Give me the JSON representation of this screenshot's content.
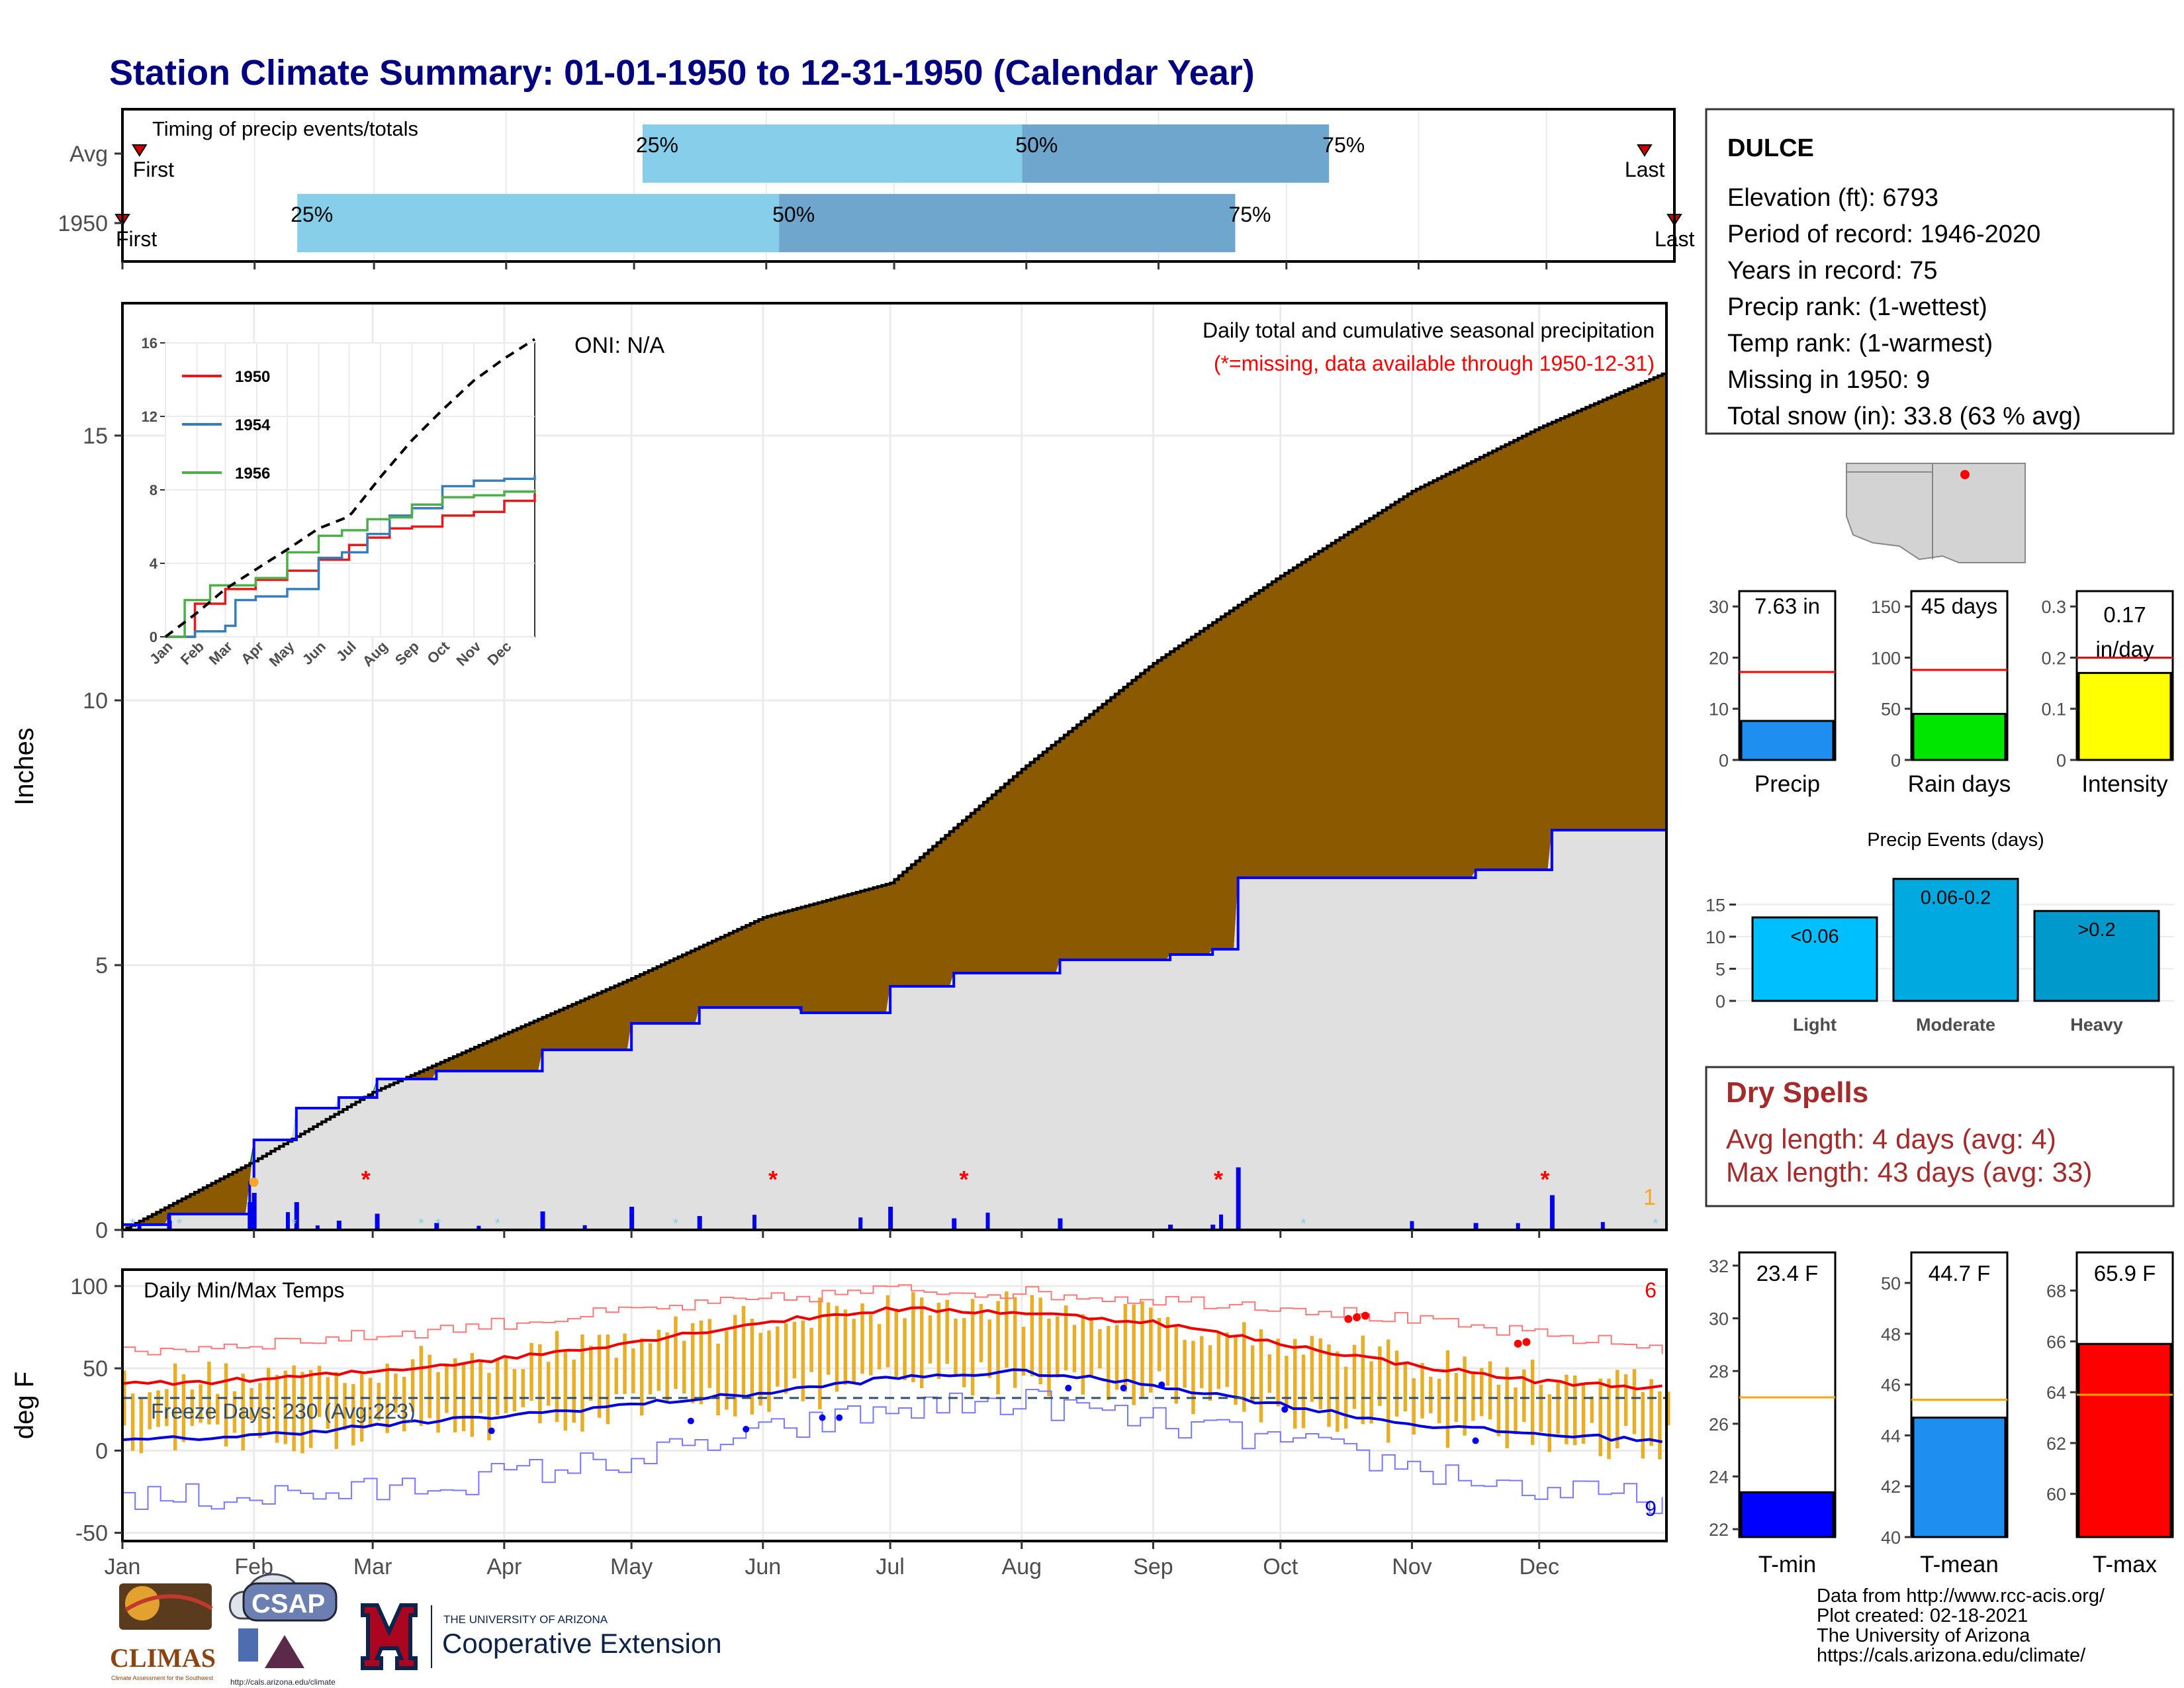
{
  "title": "Station Climate Summary: 01-01-1950 to 12-31-1950 (Calendar Year)",
  "timing": {
    "label": "Timing of precip events/totals",
    "rows": [
      "Avg",
      "1950"
    ],
    "first_label": "First",
    "last_label": "Last",
    "quartile_labels": [
      "25%",
      "50%",
      "75%"
    ],
    "avg_quartile_doy": [
      123,
      212,
      284
    ],
    "y1950_quartile_doy": [
      42,
      155,
      262
    ],
    "avg_first_doy": 5,
    "avg_last_doy": 358,
    "y1950_first_doy": 1,
    "y1950_last_doy": 365
  },
  "months": [
    "Jan",
    "Feb",
    "Mar",
    "Apr",
    "May",
    "Jun",
    "Jul",
    "Aug",
    "Sep",
    "Oct",
    "Nov",
    "Dec"
  ],
  "main_panel": {
    "ylabel": "Inches",
    "yticks": [
      0,
      5,
      10,
      15
    ],
    "ylim": [
      0,
      17.5
    ],
    "annotation_title": "Daily total and cumulative seasonal precipitation",
    "annotation_missing": "(*=missing, data available through 1950-12-31)",
    "oni": "ONI: N/A",
    "corner_count": "1"
  },
  "chart_data": [
    {
      "type": "area",
      "name": "cumulative-precip",
      "x_unit": "day of year",
      "series": [
        {
          "name": "Avg cumulative",
          "x": [
            1,
            32,
            60,
            91,
            121,
            152,
            182,
            213,
            244,
            274,
            305,
            335,
            365
          ],
          "values": [
            0,
            1.3,
            2.6,
            3.7,
            4.75,
            5.9,
            6.55,
            8.7,
            10.7,
            12.35,
            13.95,
            15.15,
            16.2
          ]
        },
        {
          "name": "1950 cumulative",
          "x": [
            1,
            12,
            20,
            31,
            32,
            42,
            52,
            61,
            75,
            100,
            121,
            137,
            152,
            161,
            182,
            192,
            197,
            222,
            248,
            258,
            264,
            320,
            338,
            365
          ],
          "values": [
            0.1,
            0.3,
            0.3,
            0.9,
            1.7,
            2.3,
            2.5,
            2.85,
            3.0,
            3.4,
            3.9,
            4.2,
            4.2,
            4.1,
            4.6,
            4.6,
            4.85,
            5.1,
            5.2,
            5.3,
            6.65,
            6.8,
            7.55,
            7.55
          ]
        }
      ],
      "missing_doy": [
        59,
        155,
        200,
        260,
        337
      ],
      "ylim": [
        0,
        17.5
      ]
    },
    {
      "type": "line",
      "name": "inset-cumulative",
      "x_unit": "day of year",
      "yticks": [
        0,
        4,
        8,
        12,
        16
      ],
      "ylim": [
        0,
        16
      ],
      "series": [
        {
          "name": "1950",
          "color": "#e41a1c",
          "x": [
            1,
            30,
            60,
            90,
            121,
            152,
            182,
            200,
            222,
            244,
            274,
            305,
            335,
            365
          ],
          "values": [
            0,
            1.8,
            2.6,
            3.1,
            3.6,
            4.2,
            5.0,
            5.4,
            5.9,
            6.0,
            6.6,
            6.8,
            7.4,
            7.8
          ]
        },
        {
          "name": "1954",
          "color": "#377eb8",
          "x": [
            1,
            30,
            60,
            70,
            90,
            121,
            152,
            175,
            200,
            222,
            244,
            274,
            305,
            335,
            365
          ],
          "values": [
            0,
            0.3,
            0.6,
            2.0,
            2.2,
            2.6,
            4.3,
            4.6,
            5.6,
            6.6,
            7.0,
            8.2,
            8.5,
            8.6,
            8.8
          ]
        },
        {
          "name": "1956",
          "color": "#4daf4a",
          "x": [
            1,
            20,
            45,
            90,
            121,
            152,
            175,
            200,
            222,
            244,
            274,
            305,
            335,
            365
          ],
          "values": [
            0,
            2.0,
            2.8,
            3.2,
            4.6,
            5.5,
            5.8,
            6.4,
            6.5,
            7.2,
            7.6,
            7.7,
            7.9,
            8.0
          ]
        },
        {
          "name": "Avg",
          "color": "#000000",
          "x": [
            1,
            32,
            60,
            91,
            121,
            152,
            182,
            213,
            244,
            274,
            305,
            335,
            365
          ],
          "values": [
            0,
            1.3,
            2.6,
            3.7,
            4.75,
            5.9,
            6.55,
            8.7,
            10.7,
            12.35,
            13.95,
            15.15,
            16.2
          ]
        }
      ]
    },
    {
      "type": "bar",
      "name": "summary-bars",
      "panels": [
        {
          "label": "Precip",
          "value_text": "7.63 in",
          "value": 7.63,
          "avg": 17.2,
          "yticks": [
            0,
            10,
            20,
            30
          ],
          "ylim": [
            0,
            33
          ],
          "color": "#1e8ff0"
        },
        {
          "label": "Rain days",
          "value_text": "45 days",
          "value": 45,
          "avg": 88,
          "yticks": [
            0,
            50,
            100,
            150
          ],
          "ylim": [
            0,
            165
          ],
          "color": "#00e600"
        },
        {
          "label": "Intensity",
          "value_text": "0.17",
          "value_text2": "in/day",
          "value": 0.17,
          "avg": 0.2,
          "yticks": [
            0.0,
            0.1,
            0.2,
            0.3
          ],
          "ylim": [
            0,
            0.33
          ],
          "color": "#ffff00"
        }
      ]
    },
    {
      "type": "bar",
      "name": "precip-events",
      "title": "Precip Events (days)",
      "categories": [
        "Light",
        "Moderate",
        "Heavy"
      ],
      "labels": [
        "<0.06",
        "0.06-0.2",
        ">0.2"
      ],
      "values": [
        13,
        19,
        14
      ],
      "yticks": [
        0,
        5,
        10,
        15
      ],
      "ylim": [
        0,
        20
      ],
      "colors": [
        "#00bfff",
        "#00a9e0",
        "#0099cc"
      ]
    },
    {
      "type": "line",
      "name": "daily-temps",
      "title": "Daily Min/Max Temps",
      "ylabel": "deg F",
      "yticks": [
        -50,
        0,
        50,
        100
      ],
      "ylim": [
        -55,
        110
      ],
      "x_unit": "day of year",
      "freeze_text": "Freeze Days: 230 (Avg:223)",
      "freeze_line": 32,
      "count_high": "6",
      "count_low": "9",
      "avg_max": {
        "x": [
          1,
          32,
          60,
          91,
          121,
          152,
          182,
          213,
          244,
          274,
          305,
          335,
          365
        ],
        "values": [
          40,
          43,
          48,
          56,
          66,
          78,
          86,
          84,
          78,
          65,
          52,
          42,
          38
        ]
      },
      "avg_min": {
        "x": [
          1,
          32,
          60,
          91,
          121,
          152,
          182,
          213,
          244,
          274,
          305,
          335,
          365
        ],
        "values": [
          6,
          9,
          15,
          21,
          28,
          35,
          44,
          48,
          40,
          28,
          16,
          10,
          6
        ]
      },
      "record_max": {
        "x": [
          1,
          60,
          121,
          182,
          213,
          274,
          335,
          365
        ],
        "values": [
          60,
          70,
          85,
          98,
          96,
          88,
          70,
          62
        ]
      },
      "record_min": {
        "x": [
          1,
          60,
          121,
          182,
          213,
          274,
          335,
          365
        ],
        "values": [
          -30,
          -25,
          -5,
          25,
          30,
          5,
          -25,
          -30
        ]
      }
    },
    {
      "type": "bar",
      "name": "temp-summary",
      "panels": [
        {
          "label": "T-min",
          "value_text": "23.4 F",
          "value": 23.4,
          "avg": 27.0,
          "yticks": [
            22,
            24,
            26,
            28,
            30,
            32
          ],
          "ylim": [
            21.7,
            32.5
          ],
          "color": "#0000ff"
        },
        {
          "label": "T-mean",
          "value_text": "44.7 F",
          "value": 44.7,
          "avg": 45.4,
          "yticks": [
            40,
            42,
            44,
            46,
            48,
            50
          ],
          "ylim": [
            40,
            51.2
          ],
          "color": "#1e8ff0"
        },
        {
          "label": "T-max",
          "value_text": "65.9 F",
          "value": 65.9,
          "avg": 63.9,
          "yticks": [
            60,
            62,
            64,
            66,
            68
          ],
          "ylim": [
            58.3,
            69.5
          ],
          "color": "#ff0000"
        }
      ]
    }
  ],
  "station": {
    "name": "DULCE",
    "lines": [
      "Elevation (ft): 6793",
      "Period of record: 1946-2020",
      "Years in record: 75",
      "Precip rank:  (1-wettest)",
      "Temp rank:  (1-warmest)",
      "Missing in 1950: 9",
      "Total snow (in): 33.8 (63 % avg)"
    ]
  },
  "dry_spells": {
    "title": "Dry Spells",
    "avg": "Avg length: 4 days (avg: 4)",
    "max": "Max length: 43 days (avg: 33)"
  },
  "credits": [
    "Data from http://www.rcc-acis.org/",
    "Plot created: 02-18-2021",
    "The University of Arizona",
    "https://cals.arizona.edu/climate/"
  ],
  "logos": {
    "climas": "CLIMAS",
    "climas_sub": "Climate Assessment for the Southwest",
    "csap": "CSAP",
    "csap_url": "http://cals.arizona.edu/climate",
    "ua_small": "THE UNIVERSITY OF ARIZONA",
    "ua_big": "Cooperative Extension"
  },
  "colors": {
    "title": "#000080",
    "deficit": "#8b5a00",
    "surplus": "#007f00",
    "actual_fill": "#e0e0e0",
    "actual_line": "#0000ff",
    "q_light": "#87ceeb",
    "q_dark": "#6ea6cd",
    "missing": "#ff0000",
    "temp_bar": "#e8ae27",
    "dry_spells": "#a52a2a"
  }
}
